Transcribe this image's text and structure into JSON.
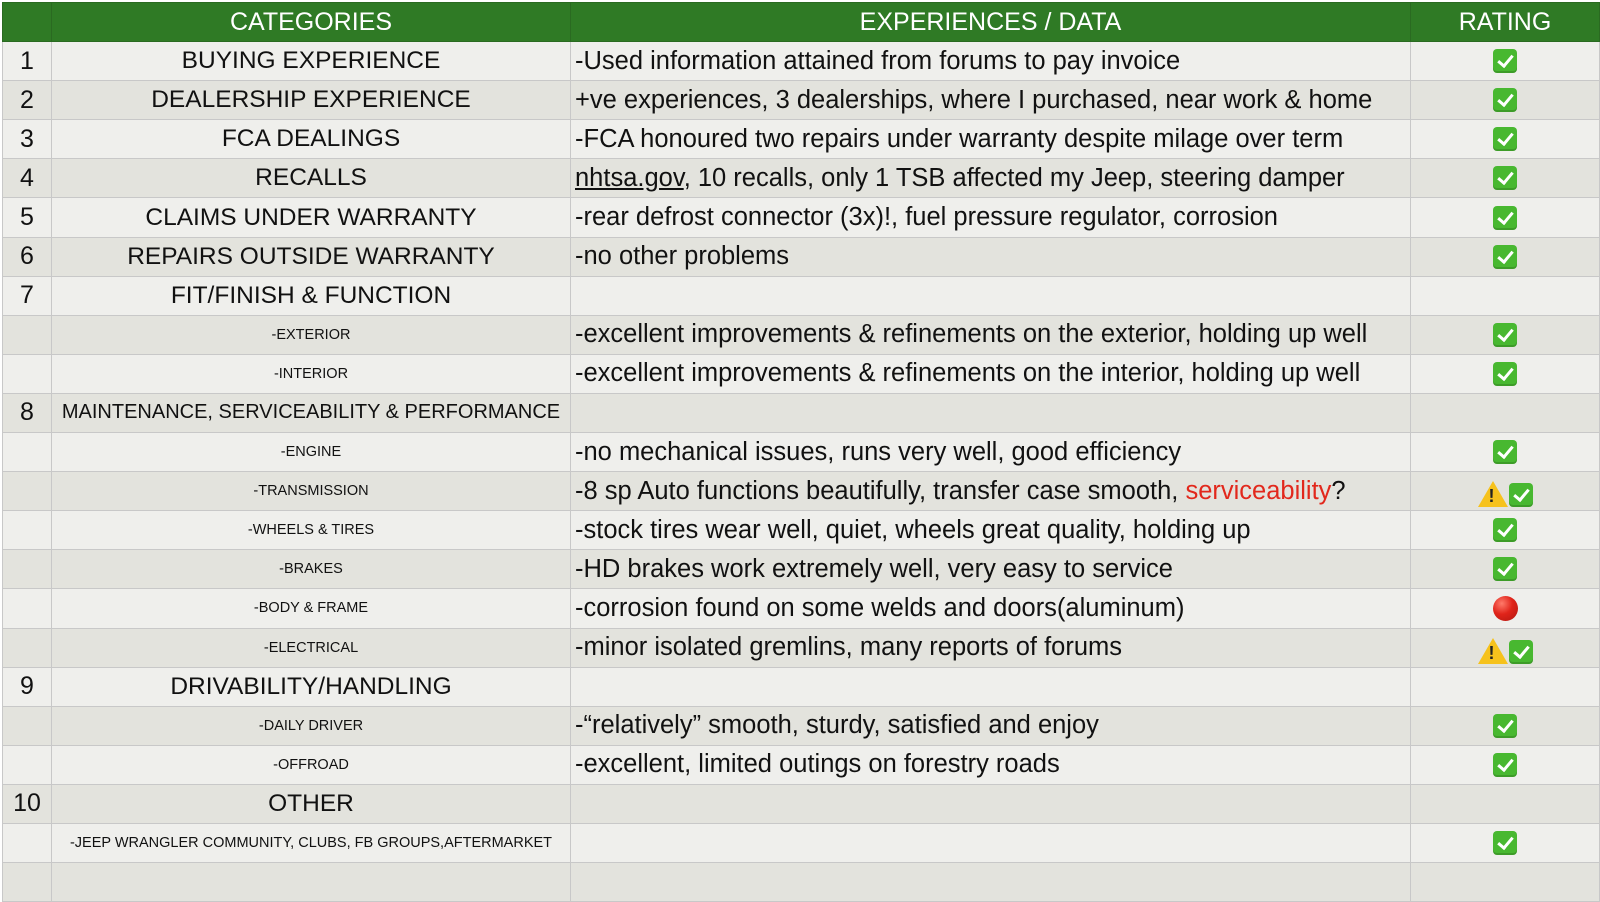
{
  "header": {
    "num": "",
    "categories": "CATEGORIES",
    "experiences": "EXPERIENCES / DATA",
    "rating": "RATING"
  },
  "rows": [
    {
      "num": "1",
      "category": "BUYING EXPERIENCE",
      "exp": "-Used information attained from forums to pay invoice",
      "rating": "check"
    },
    {
      "num": "2",
      "category": "DEALERSHIP EXPERIENCE",
      "exp": "+ve experiences, 3 dealerships, where I purchased, near work & home",
      "rating": "check"
    },
    {
      "num": "3",
      "category": "FCA DEALINGS",
      "exp": "-FCA honoured two repairs under warranty despite milage over term",
      "rating": "check"
    },
    {
      "num": "4",
      "category": "RECALLS",
      "exp_link": "nhtsa.gov",
      "exp": ", 10 recalls, only 1 TSB affected my Jeep, steering damper",
      "rating": "check"
    },
    {
      "num": "5",
      "category": "CLAIMS UNDER WARRANTY",
      "exp": "-rear defrost connector (3x)!, fuel pressure regulator, corrosion",
      "rating": "check"
    },
    {
      "num": "6",
      "category": "REPAIRS OUTSIDE WARRANTY",
      "exp": "-no other problems",
      "rating": "check"
    },
    {
      "num": "7",
      "category": "FIT/FINISH & FUNCTION",
      "exp": "",
      "rating": ""
    },
    {
      "num": "",
      "category": "-EXTERIOR",
      "exp": "-excellent improvements & refinements on the exterior, holding up well",
      "rating": "check"
    },
    {
      "num": "",
      "category": "-INTERIOR",
      "exp": "-excellent improvements & refinements on the interior, holding up well",
      "rating": "check"
    },
    {
      "num": "8",
      "category": "MAINTENANCE, SERVICEABILITY & PERFORMANCE",
      "exp": "",
      "rating": ""
    },
    {
      "num": "",
      "category": "-ENGINE",
      "exp": "-no mechanical issues, runs very well, good efficiency",
      "rating": "check"
    },
    {
      "num": "",
      "category": "-TRANSMISSION",
      "exp": "-8 sp Auto functions beautifully, transfer case smooth, ",
      "exp_red": "serviceability",
      "exp_after": "?",
      "rating": "warn-check"
    },
    {
      "num": "",
      "category": "-WHEELS & TIRES",
      "exp": "-stock tires wear well, quiet, wheels great quality, holding up",
      "rating": "check"
    },
    {
      "num": "",
      "category": "-BRAKES",
      "exp": "-HD brakes work extremely well, very easy to service",
      "rating": "check"
    },
    {
      "num": "",
      "category": "-BODY & FRAME",
      "exp": "-corrosion found on some welds and doors(aluminum)",
      "rating": "red-circle"
    },
    {
      "num": "",
      "category": "-ELECTRICAL",
      "exp": "-minor isolated gremlins, many reports of forums",
      "rating": "warn-check"
    },
    {
      "num": "9",
      "category": "DRIVABILITY/HANDLING",
      "exp": "",
      "rating": ""
    },
    {
      "num": "",
      "category": "-DAILY DRIVER",
      "exp": "-“relatively” smooth, sturdy, satisfied and enjoy",
      "rating": "check"
    },
    {
      "num": "",
      "category": "-OFFROAD",
      "exp": "-excellent, limited outings on forestry roads",
      "rating": "check"
    },
    {
      "num": "10",
      "category": "OTHER",
      "exp": "",
      "rating": ""
    },
    {
      "num": "",
      "category": "-JEEP WRANGLER COMMUNITY, CLUBS, FB GROUPS,AFTERMARKET",
      "exp": "",
      "rating": "check"
    },
    {
      "num": "",
      "category": "",
      "exp": "",
      "rating": ""
    }
  ],
  "icons": {
    "check": "check-mark-icon",
    "warn-check": "warning-and-check-icon",
    "red-circle": "red-circle-icon"
  },
  "colors": {
    "header_bg": "#2f7a25",
    "header_text": "#ffffff",
    "row_light": "#efefec",
    "row_dark": "#e3e3dd",
    "check": "#48b830",
    "warn": "#f6c21c",
    "alert_red": "#e2281c",
    "red_circle": "#e0241a"
  }
}
